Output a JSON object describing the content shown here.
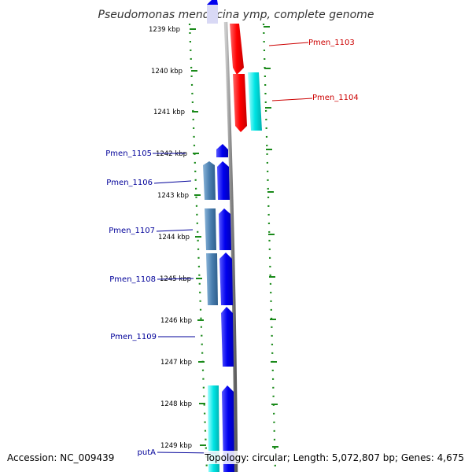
{
  "title": "Pseudomonas mendocina ymp, complete genome",
  "footer": {
    "accession": "Accession: NC_009439",
    "summary": "Topology: circular; Length: 5,072,807 bp; Genes: 4,675"
  },
  "colors": {
    "forward_gene": "#ff0000",
    "reverse_gene": "#0000ee",
    "forward_alt": "#00e5e5",
    "reverse_alt": "#4a7fb0",
    "forward_label": "#cc0000",
    "reverse_label": "#000099",
    "tick": "#1a8a1a",
    "backbone": "#8a8a8a"
  },
  "scale": {
    "unit": "kbp",
    "ticks": [
      {
        "label": "1239 kbp"
      },
      {
        "label": "1240 kbp"
      },
      {
        "label": "1241 kbp"
      },
      {
        "label": "1242 kbp"
      },
      {
        "label": "1243 kbp"
      },
      {
        "label": "1244 kbp"
      },
      {
        "label": "1245 kbp"
      },
      {
        "label": "1246 kbp"
      },
      {
        "label": "1247 kbp"
      },
      {
        "label": "1248 kbp"
      },
      {
        "label": "1249 kbp"
      }
    ]
  },
  "genes": [
    {
      "name": "Pmen_1103",
      "strand": "forward"
    },
    {
      "name": "Pmen_1104",
      "strand": "forward"
    },
    {
      "name": "Pmen_1105",
      "strand": "reverse"
    },
    {
      "name": "Pmen_1106",
      "strand": "reverse"
    },
    {
      "name": "Pmen_1107",
      "strand": "reverse"
    },
    {
      "name": "Pmen_1108",
      "strand": "reverse"
    },
    {
      "name": "Pmen_1109",
      "strand": "reverse"
    },
    {
      "name": "putA",
      "strand": "reverse"
    }
  ]
}
